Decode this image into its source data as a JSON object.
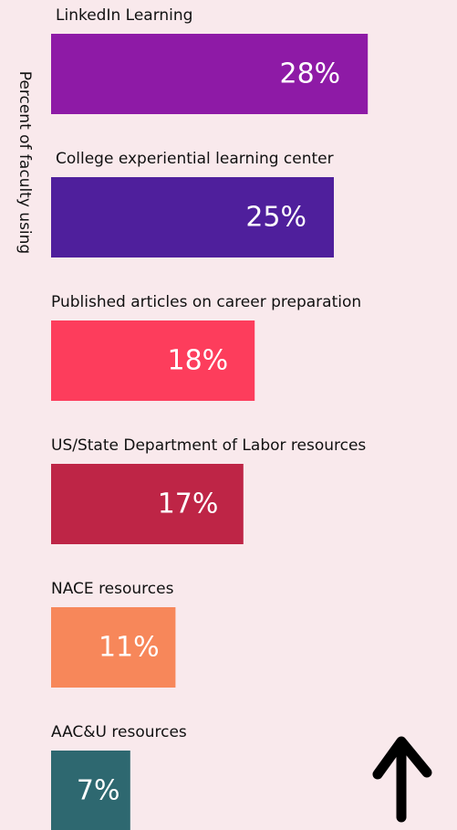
{
  "chart_data": {
    "type": "bar",
    "orientation": "horizontal",
    "y_label": "Percent of faculty using",
    "categories": [
      "LinkedIn Learning",
      "College experiential learning center",
      "Published articles on career preparation",
      "US/State Department of Labor resources",
      "NACE resources",
      "AAC&U resources"
    ],
    "values": [
      28,
      25,
      18,
      17,
      11,
      7
    ],
    "value_labels": [
      "28%",
      "25%",
      "18%",
      "17%",
      "11%",
      "7%"
    ],
    "colors": [
      "#8e1aa6",
      "#4f1f9c",
      "#fd3d5c",
      "#be2546",
      "#f7875a",
      "#2e6870"
    ],
    "xlim": [
      0,
      30
    ]
  }
}
